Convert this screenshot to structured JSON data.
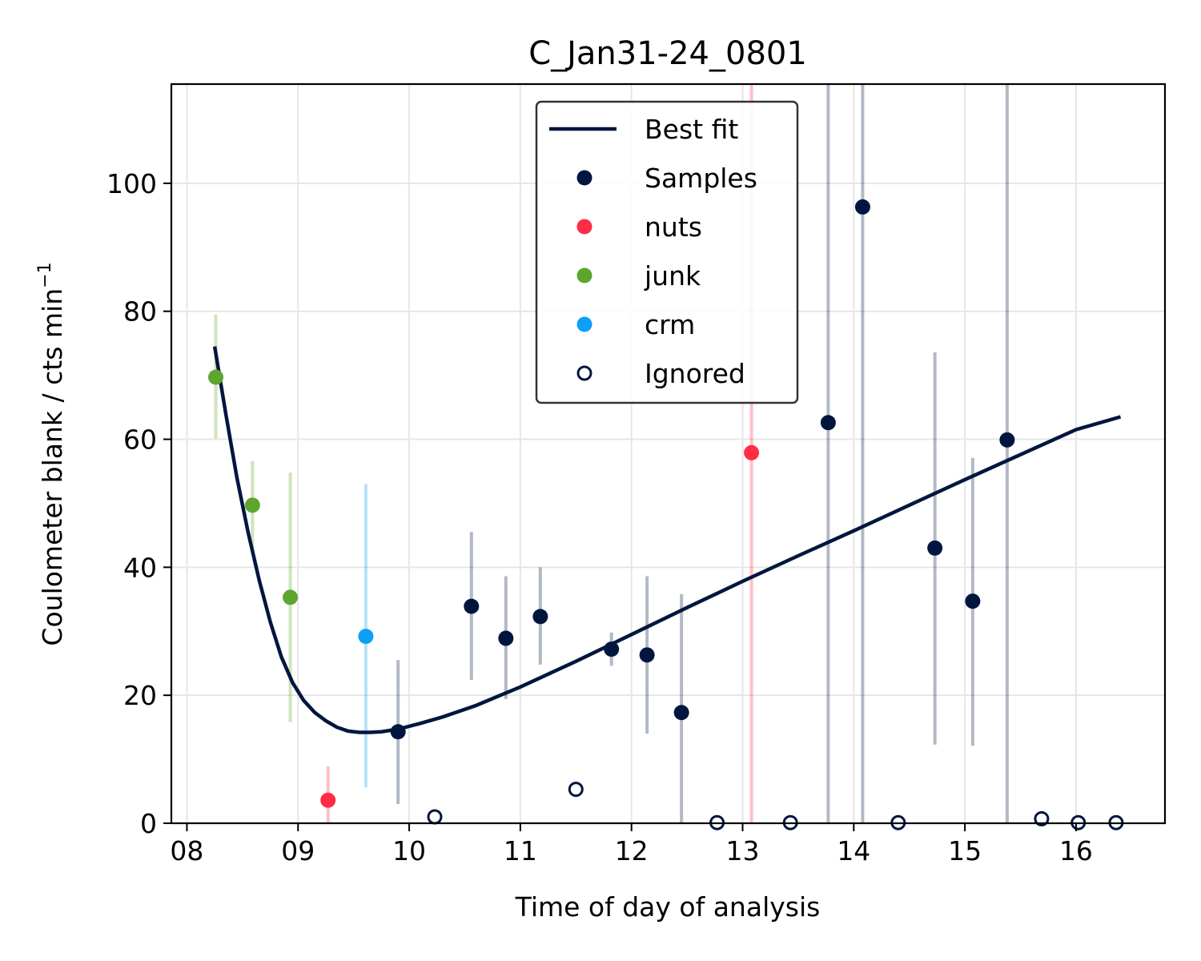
{
  "chart_data": {
    "type": "scatter",
    "title": "C_Jan31-24_0801",
    "xlabel": "Time of day of analysis",
    "ylabel": "Coulometer blank / cts min",
    "ylabel_superscript": "−1",
    "xlim": [
      7.86,
      16.8
    ],
    "ylim": [
      0,
      115.5
    ],
    "x_ticks": [
      8,
      9,
      10,
      11,
      12,
      13,
      14,
      15,
      16
    ],
    "x_tick_labels": [
      "08",
      "09",
      "10",
      "11",
      "12",
      "13",
      "14",
      "15",
      "16"
    ],
    "y_ticks": [
      0,
      20,
      40,
      60,
      80,
      100
    ],
    "y_tick_labels": [
      "0",
      "20",
      "40",
      "60",
      "80",
      "100"
    ],
    "grid": true,
    "legend_position": "top-center",
    "colors": {
      "best_fit": "#00163f",
      "samples": "#00163f",
      "nuts": "#ff2d46",
      "junk": "#5ea52e",
      "crm": "#0c9ff5",
      "ignored": "#00163f"
    },
    "legend": [
      {
        "key": "best_fit",
        "label": "Best fit",
        "kind": "line"
      },
      {
        "key": "samples",
        "label": "Samples",
        "kind": "dot"
      },
      {
        "key": "nuts",
        "label": "nuts",
        "kind": "dot"
      },
      {
        "key": "junk",
        "label": "junk",
        "kind": "dot"
      },
      {
        "key": "crm",
        "label": "crm",
        "kind": "dot"
      },
      {
        "key": "ignored",
        "label": "Ignored",
        "kind": "open"
      }
    ],
    "best_fit": {
      "x": [
        8.25,
        8.35,
        8.45,
        8.55,
        8.65,
        8.75,
        8.85,
        8.95,
        9.05,
        9.15,
        9.25,
        9.35,
        9.45,
        9.55,
        9.65,
        9.75,
        9.9,
        10.1,
        10.3,
        10.6,
        11.0,
        11.5,
        12.0,
        12.5,
        13.0,
        13.5,
        14.0,
        14.5,
        15.0,
        15.5,
        16.0,
        16.4
      ],
      "y": [
        74.5,
        64.0,
        54.0,
        45.5,
        38.0,
        31.5,
        26.0,
        22.0,
        19.2,
        17.3,
        16.0,
        15.0,
        14.4,
        14.2,
        14.2,
        14.3,
        14.7,
        15.6,
        16.6,
        18.4,
        21.3,
        25.3,
        29.5,
        33.7,
        37.8,
        41.8,
        45.7,
        49.7,
        53.7,
        57.6,
        61.5,
        63.5
      ]
    },
    "samples": [
      {
        "x": 9.9,
        "y": 14.3,
        "err": [
          3,
          25.5
        ]
      },
      {
        "x": 10.56,
        "y": 33.9,
        "err": [
          22.4,
          45.5
        ]
      },
      {
        "x": 10.87,
        "y": 28.9,
        "err": [
          19.4,
          38.6
        ]
      },
      {
        "x": 11.18,
        "y": 32.3,
        "err": [
          24.8,
          40
        ]
      },
      {
        "x": 11.82,
        "y": 27.2,
        "err": [
          24.6,
          29.8
        ]
      },
      {
        "x": 12.14,
        "y": 26.3,
        "err": [
          14,
          38.6
        ]
      },
      {
        "x": 12.45,
        "y": 17.3,
        "err": [
          0,
          35.8
        ]
      },
      {
        "x": 13.77,
        "y": 62.6,
        "err": [
          0,
          115.5
        ]
      },
      {
        "x": 14.08,
        "y": 96.3,
        "err": [
          0,
          115.5
        ]
      },
      {
        "x": 14.73,
        "y": 43.0,
        "err": [
          12.3,
          73.6
        ]
      },
      {
        "x": 15.07,
        "y": 34.7,
        "err": [
          12.1,
          57.1
        ]
      },
      {
        "x": 15.38,
        "y": 59.9,
        "err": [
          0,
          115.5
        ]
      }
    ],
    "nuts": [
      {
        "x": 9.27,
        "y": 3.6,
        "err": [
          0,
          8.9
        ]
      },
      {
        "x": 13.08,
        "y": 57.9,
        "err": [
          0,
          115.5
        ]
      }
    ],
    "junk": [
      {
        "x": 8.26,
        "y": 69.7,
        "err": [
          60.1,
          79.5
        ]
      },
      {
        "x": 8.59,
        "y": 49.7,
        "err": [
          42.8,
          56.6
        ]
      },
      {
        "x": 8.93,
        "y": 35.3,
        "err": [
          15.8,
          54.8
        ]
      }
    ],
    "crm": [
      {
        "x": 9.61,
        "y": 29.2,
        "err": [
          5.6,
          53
        ]
      }
    ],
    "ignored": [
      {
        "x": 10.23,
        "y": 1.0
      },
      {
        "x": 11.5,
        "y": 5.3
      },
      {
        "x": 12.77,
        "y": 0.1
      },
      {
        "x": 13.43,
        "y": 0.1
      },
      {
        "x": 14.4,
        "y": 0.1
      },
      {
        "x": 15.69,
        "y": 0.7
      },
      {
        "x": 16.02,
        "y": 0.1
      },
      {
        "x": 16.36,
        "y": 0.1
      }
    ]
  }
}
